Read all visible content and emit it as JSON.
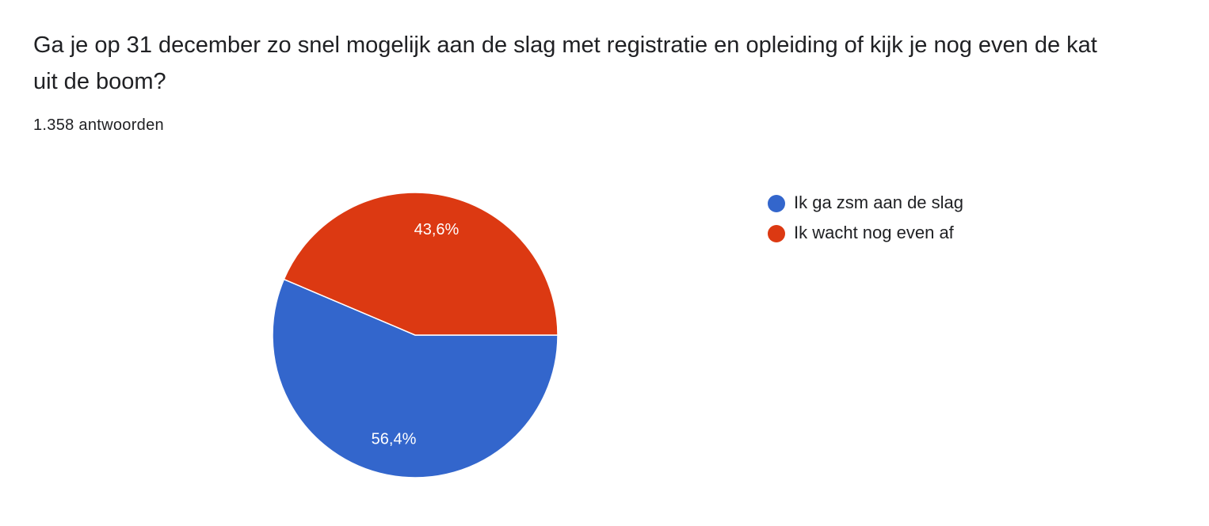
{
  "chart_data": {
    "type": "pie",
    "title": "Ga je op 31 december zo snel mogelijk aan de slag met registratie en opleiding of kijk je nog even de kat uit de boom?",
    "subtitle": "1.358 antwoorden",
    "categories": [
      "Ik ga zsm aan de slag",
      "Ik wacht nog even af"
    ],
    "values": [
      56.4,
      43.6
    ],
    "value_labels": [
      "56,4%",
      "43,6%"
    ],
    "colors": [
      "#3366cc",
      "#dc3912"
    ],
    "legend": "right"
  }
}
